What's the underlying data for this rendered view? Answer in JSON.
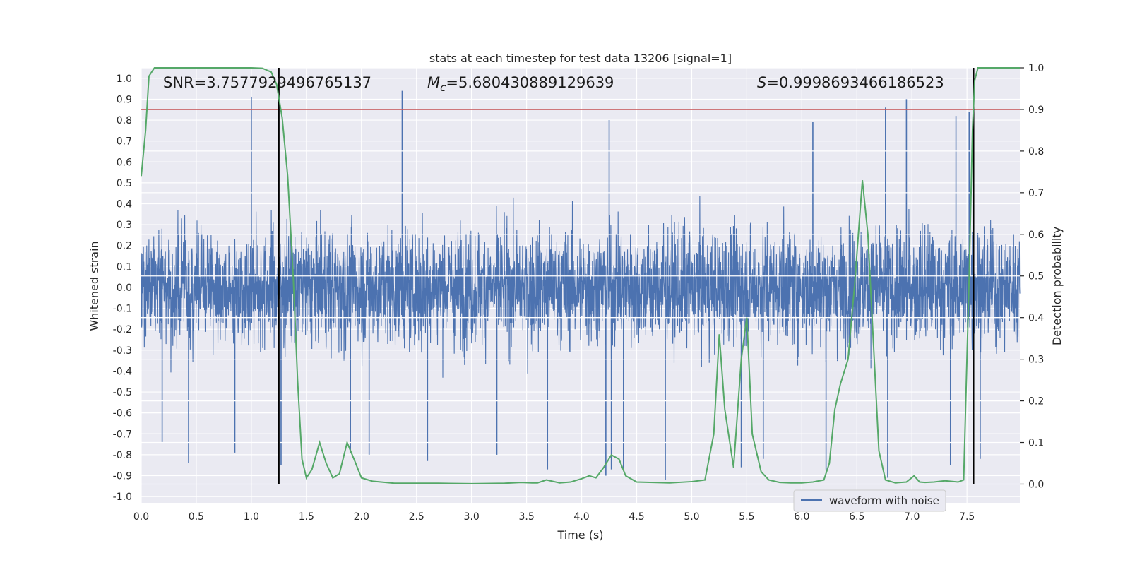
{
  "chart_data": {
    "type": "line",
    "title": "stats at each timestep for test data 13206 [signal=1]",
    "xlabel": "Time (s)",
    "ylabel": "Whitened strain",
    "y2label": "Detection probability",
    "xlim": [
      0.0,
      7.98
    ],
    "ylim": [
      -1.03,
      1.05
    ],
    "y2lim": [
      -0.045,
      1.0
    ],
    "xticks": [
      "0.0",
      "0.5",
      "1.0",
      "1.5",
      "2.0",
      "2.5",
      "3.0",
      "3.5",
      "4.0",
      "4.5",
      "5.0",
      "5.5",
      "6.0",
      "6.5",
      "7.0",
      "7.5"
    ],
    "yticks": [
      "1.0",
      "0.9",
      "0.8",
      "0.7",
      "0.6",
      "0.5",
      "0.4",
      "0.3",
      "0.2",
      "0.1",
      "0.0",
      "-0.1",
      "-0.2",
      "-0.3",
      "-0.4",
      "-0.5",
      "-0.6",
      "-0.7",
      "-0.8",
      "-0.9",
      "-1.0"
    ],
    "y2ticks": [
      "1.0",
      "0.9",
      "0.8",
      "0.7",
      "0.6",
      "0.5",
      "0.4",
      "0.3",
      "0.2",
      "0.1",
      "0.0"
    ],
    "annotations": {
      "snr": "SNR=3.7577929496765137",
      "mc_symbol": "M",
      "mc_sub": "c",
      "mc_value": "=5.680430889129639",
      "s_symbol": "S",
      "s_value": "=0.9998693466186523"
    },
    "threshold": {
      "y2": 0.9,
      "color": "#c44e52"
    },
    "vlines": {
      "x": [
        1.25,
        7.56
      ],
      "y2_range": [
        0.0,
        1.0
      ],
      "color": "#000000"
    },
    "legend": {
      "label": "waveform with noise",
      "location": "lower-right"
    },
    "series": [
      {
        "name": "waveform with noise",
        "axis": "left",
        "color": "#4c72b0",
        "style": "noise",
        "x_range": [
          0.0,
          7.98
        ],
        "typical_amplitude": 0.35,
        "spikes": [
          {
            "x": 1.0,
            "y": 0.91
          },
          {
            "x": 2.37,
            "y": 0.94
          },
          {
            "x": 6.95,
            "y": 0.9
          },
          {
            "x": 6.76,
            "y": 0.86
          },
          {
            "x": 7.4,
            "y": 0.82
          },
          {
            "x": 7.52,
            "y": 0.84
          },
          {
            "x": 4.25,
            "y": 0.8
          },
          {
            "x": 6.1,
            "y": 0.79
          },
          {
            "x": 0.43,
            "y": -0.84
          },
          {
            "x": 0.19,
            "y": -0.74
          },
          {
            "x": 0.85,
            "y": -0.79
          },
          {
            "x": 1.27,
            "y": -0.85
          },
          {
            "x": 2.07,
            "y": -0.8
          },
          {
            "x": 2.6,
            "y": -0.83
          },
          {
            "x": 3.23,
            "y": -0.8
          },
          {
            "x": 3.69,
            "y": -0.87
          },
          {
            "x": 4.22,
            "y": -0.9
          },
          {
            "x": 4.27,
            "y": -0.87
          },
          {
            "x": 4.38,
            "y": -0.87
          },
          {
            "x": 4.76,
            "y": -0.92
          },
          {
            "x": 5.45,
            "y": -0.86
          },
          {
            "x": 6.78,
            "y": -0.91
          },
          {
            "x": 7.35,
            "y": -0.85
          },
          {
            "x": 7.62,
            "y": -0.82
          },
          {
            "x": 1.9,
            "y": -0.79
          },
          {
            "x": 5.65,
            "y": -0.82
          },
          {
            "x": 6.22,
            "y": -0.87
          }
        ]
      },
      {
        "name": "Detection probability",
        "axis": "right",
        "color": "#55a868",
        "x": [
          0.0,
          0.04,
          0.07,
          0.12,
          0.2,
          0.5,
          0.8,
          1.0,
          1.1,
          1.18,
          1.23,
          1.28,
          1.33,
          1.38,
          1.42,
          1.46,
          1.5,
          1.55,
          1.62,
          1.68,
          1.74,
          1.8,
          1.87,
          1.94,
          2.0,
          2.1,
          2.3,
          2.7,
          3.0,
          3.3,
          3.45,
          3.55,
          3.6,
          3.68,
          3.8,
          3.9,
          4.0,
          4.07,
          4.13,
          4.2,
          4.27,
          4.34,
          4.4,
          4.5,
          4.8,
          5.0,
          5.12,
          5.2,
          5.25,
          5.3,
          5.38,
          5.45,
          5.5,
          5.55,
          5.63,
          5.7,
          5.8,
          5.9,
          6.0,
          6.1,
          6.2,
          6.25,
          6.3,
          6.35,
          6.42,
          6.48,
          6.55,
          6.6,
          6.65,
          6.7,
          6.76,
          6.85,
          6.95,
          7.02,
          7.07,
          7.12,
          7.2,
          7.3,
          7.42,
          7.47,
          7.52,
          7.55,
          7.57,
          7.6,
          7.62,
          7.65,
          7.7,
          7.98
        ],
        "y": [
          0.74,
          0.85,
          0.98,
          1.0,
          1.0,
          1.0,
          1.0,
          1.0,
          0.999,
          0.99,
          0.96,
          0.88,
          0.74,
          0.5,
          0.25,
          0.06,
          0.015,
          0.035,
          0.1,
          0.05,
          0.015,
          0.025,
          0.1,
          0.055,
          0.015,
          0.007,
          0.002,
          0.002,
          0.001,
          0.002,
          0.004,
          0.003,
          0.003,
          0.01,
          0.003,
          0.005,
          0.013,
          0.02,
          0.015,
          0.04,
          0.07,
          0.06,
          0.02,
          0.005,
          0.003,
          0.006,
          0.01,
          0.12,
          0.36,
          0.18,
          0.04,
          0.3,
          0.4,
          0.12,
          0.03,
          0.01,
          0.004,
          0.003,
          0.003,
          0.005,
          0.01,
          0.05,
          0.18,
          0.24,
          0.3,
          0.48,
          0.73,
          0.6,
          0.34,
          0.08,
          0.01,
          0.003,
          0.005,
          0.02,
          0.005,
          0.004,
          0.005,
          0.008,
          0.005,
          0.01,
          0.5,
          0.85,
          0.97,
          1.0,
          1.0,
          1.0,
          1.0,
          1.0
        ]
      }
    ]
  }
}
